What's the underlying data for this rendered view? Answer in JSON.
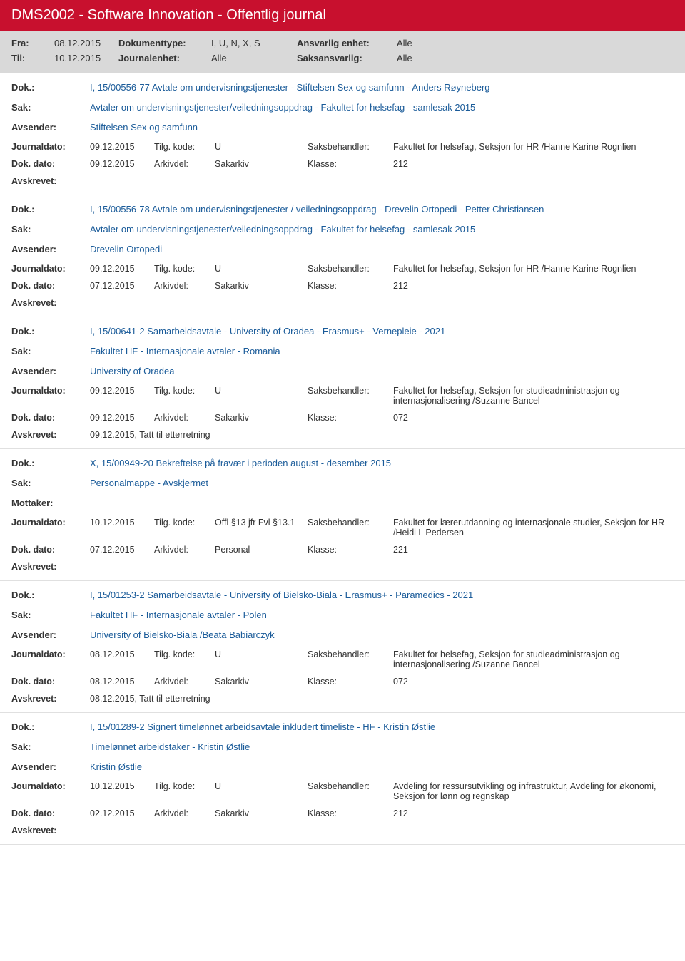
{
  "header": {
    "title": "DMS2002 - Software Innovation - Offentlig journal"
  },
  "filter": {
    "fra_label": "Fra:",
    "fra_value": "08.12.2015",
    "til_label": "Til:",
    "til_value": "10.12.2015",
    "dokumenttype_label": "Dokumenttype:",
    "dokumenttype_value": "I, U, N, X, S",
    "journalenhet_label": "Journalenhet:",
    "journalenhet_value": "Alle",
    "ansvarlig_enhet_label": "Ansvarlig enhet:",
    "ansvarlig_enhet_value": "Alle",
    "saksansvarlig_label": "Saksansvarlig:",
    "saksansvarlig_value": "Alle"
  },
  "labels": {
    "dok": "Dok.:",
    "sak": "Sak:",
    "avsender": "Avsender:",
    "mottaker": "Mottaker:",
    "journaldato": "Journaldato:",
    "tilgkode": "Tilg. kode:",
    "saksbehandler": "Saksbehandler:",
    "dokdato": "Dok. dato:",
    "arkivdel": "Arkivdel:",
    "klasse": "Klasse:",
    "avskrevet": "Avskrevet:"
  },
  "entries": [
    {
      "dok": "I, 15/00556-77 Avtale om undervisningstjenester - Stiftelsen Sex og samfunn - Anders Røyneberg",
      "sak": "Avtaler om undervisningstjenester/veiledningsoppdrag - Fakultet for helsefag - samlesak 2015",
      "party_label": "Avsender:",
      "party": "Stiftelsen Sex og samfunn",
      "journaldato": "09.12.2015",
      "tilgkode": "U",
      "saksbehandler": "Fakultet for helsefag, Seksjon for HR /Hanne Karine Rognlien",
      "dokdato": "09.12.2015",
      "arkivdel": "Sakarkiv",
      "klasse": "212",
      "avskrevet": ""
    },
    {
      "dok": "I, 15/00556-78 Avtale om undervisningstjenester / veiledningsoppdrag - Drevelin Ortopedi - Petter Christiansen",
      "sak": "Avtaler om undervisningstjenester/veiledningsoppdrag - Fakultet for helsefag - samlesak 2015",
      "party_label": "Avsender:",
      "party": "Drevelin Ortopedi",
      "journaldato": "09.12.2015",
      "tilgkode": "U",
      "saksbehandler": "Fakultet for helsefag, Seksjon for HR /Hanne Karine Rognlien",
      "dokdato": "07.12.2015",
      "arkivdel": "Sakarkiv",
      "klasse": "212",
      "avskrevet": ""
    },
    {
      "dok": "I, 15/00641-2 Samarbeidsavtale - University of Oradea - Erasmus+ - Vernepleie - 2021",
      "sak": "Fakultet HF - Internasjonale avtaler  - Romania",
      "party_label": "Avsender:",
      "party": "University of Oradea",
      "journaldato": "09.12.2015",
      "tilgkode": "U",
      "saksbehandler": "Fakultet for helsefag, Seksjon for studieadministrasjon og internasjonalisering /Suzanne Bancel",
      "dokdato": "09.12.2015",
      "arkivdel": "Sakarkiv",
      "klasse": "072",
      "avskrevet": "09.12.2015, Tatt til etterretning"
    },
    {
      "dok": "X, 15/00949-20 Bekreftelse på fravær i perioden august - desember 2015",
      "sak": "Personalmappe - Avskjermet",
      "party_label": "Mottaker:",
      "party": "",
      "journaldato": "10.12.2015",
      "tilgkode": "Offl §13 jfr Fvl §13.1",
      "saksbehandler": "Fakultet for lærerutdanning og internasjonale studier, Seksjon for HR /Heidi L Pedersen",
      "dokdato": "07.12.2015",
      "arkivdel": "Personal",
      "klasse": "221",
      "avskrevet": ""
    },
    {
      "dok": "I, 15/01253-2 Samarbeidsavtale - University of Bielsko-Biala - Erasmus+ - Paramedics - 2021",
      "sak": "Fakultet HF - Internasjonale avtaler - Polen",
      "party_label": "Avsender:",
      "party": "University of Bielsko-Biala /Beata Babiarczyk",
      "journaldato": "08.12.2015",
      "tilgkode": "U",
      "saksbehandler": "Fakultet for helsefag, Seksjon for studieadministrasjon og internasjonalisering /Suzanne Bancel",
      "dokdato": "08.12.2015",
      "arkivdel": "Sakarkiv",
      "klasse": "072",
      "avskrevet": "08.12.2015, Tatt til etterretning"
    },
    {
      "dok": "I, 15/01289-2 Signert timelønnet arbeidsavtale inkludert timeliste - HF - Kristin Østlie",
      "sak": "Timelønnet arbeidstaker - Kristin Østlie",
      "party_label": "Avsender:",
      "party": "Kristin Østlie",
      "journaldato": "10.12.2015",
      "tilgkode": "U",
      "saksbehandler": "Avdeling for ressursutvikling og infrastruktur, Avdeling for økonomi, Seksjon for lønn og regnskap",
      "dokdato": "02.12.2015",
      "arkivdel": "Sakarkiv",
      "klasse": "212",
      "avskrevet": ""
    }
  ]
}
